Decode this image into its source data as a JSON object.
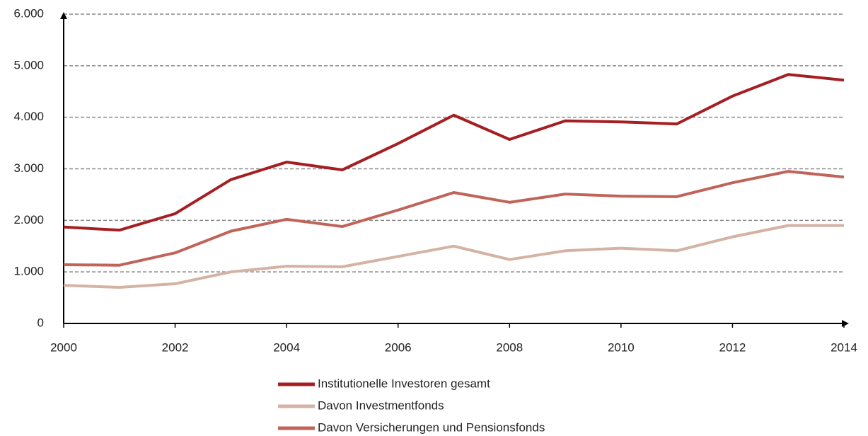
{
  "chart_data": {
    "type": "line",
    "x": [
      2000,
      2001,
      2002,
      2003,
      2004,
      2005,
      2006,
      2007,
      2008,
      2009,
      2010,
      2011,
      2012,
      2013,
      2014
    ],
    "series": [
      {
        "name": "Institutionelle Investoren gesamt",
        "color": "#a51e22",
        "values": [
          1870,
          1810,
          2130,
          2790,
          3130,
          2980,
          3490,
          4040,
          3570,
          3930,
          3910,
          3870,
          4410,
          4830,
          4720
        ]
      },
      {
        "name": "Davon Investmentfonds",
        "color": "#d4b3a5",
        "values": [
          740,
          700,
          770,
          1000,
          1110,
          1100,
          1300,
          1500,
          1240,
          1410,
          1460,
          1410,
          1680,
          1900,
          1900
        ]
      },
      {
        "name": "Davon Versicherungen und Pensionsfonds",
        "color": "#c0645a",
        "values": [
          1140,
          1130,
          1370,
          1790,
          2020,
          1880,
          2200,
          2540,
          2350,
          2510,
          2470,
          2460,
          2730,
          2950,
          2840
        ]
      }
    ],
    "xlim": [
      2000,
      2014
    ],
    "xticks": [
      2000,
      2002,
      2004,
      2006,
      2008,
      2010,
      2012,
      2014
    ],
    "ylim": [
      0,
      6000
    ],
    "yticks": [
      0,
      {
        "value": 1000,
        "label": "1.000"
      },
      {
        "value": 2000,
        "label": "2.000"
      },
      {
        "value": 3000,
        "label": "3.000"
      },
      {
        "value": 4000,
        "label": "4.000"
      },
      {
        "value": 5000,
        "label": "5.000"
      },
      {
        "value": 6000,
        "label": "6.000"
      }
    ],
    "grid": true,
    "legend": "bottom"
  }
}
